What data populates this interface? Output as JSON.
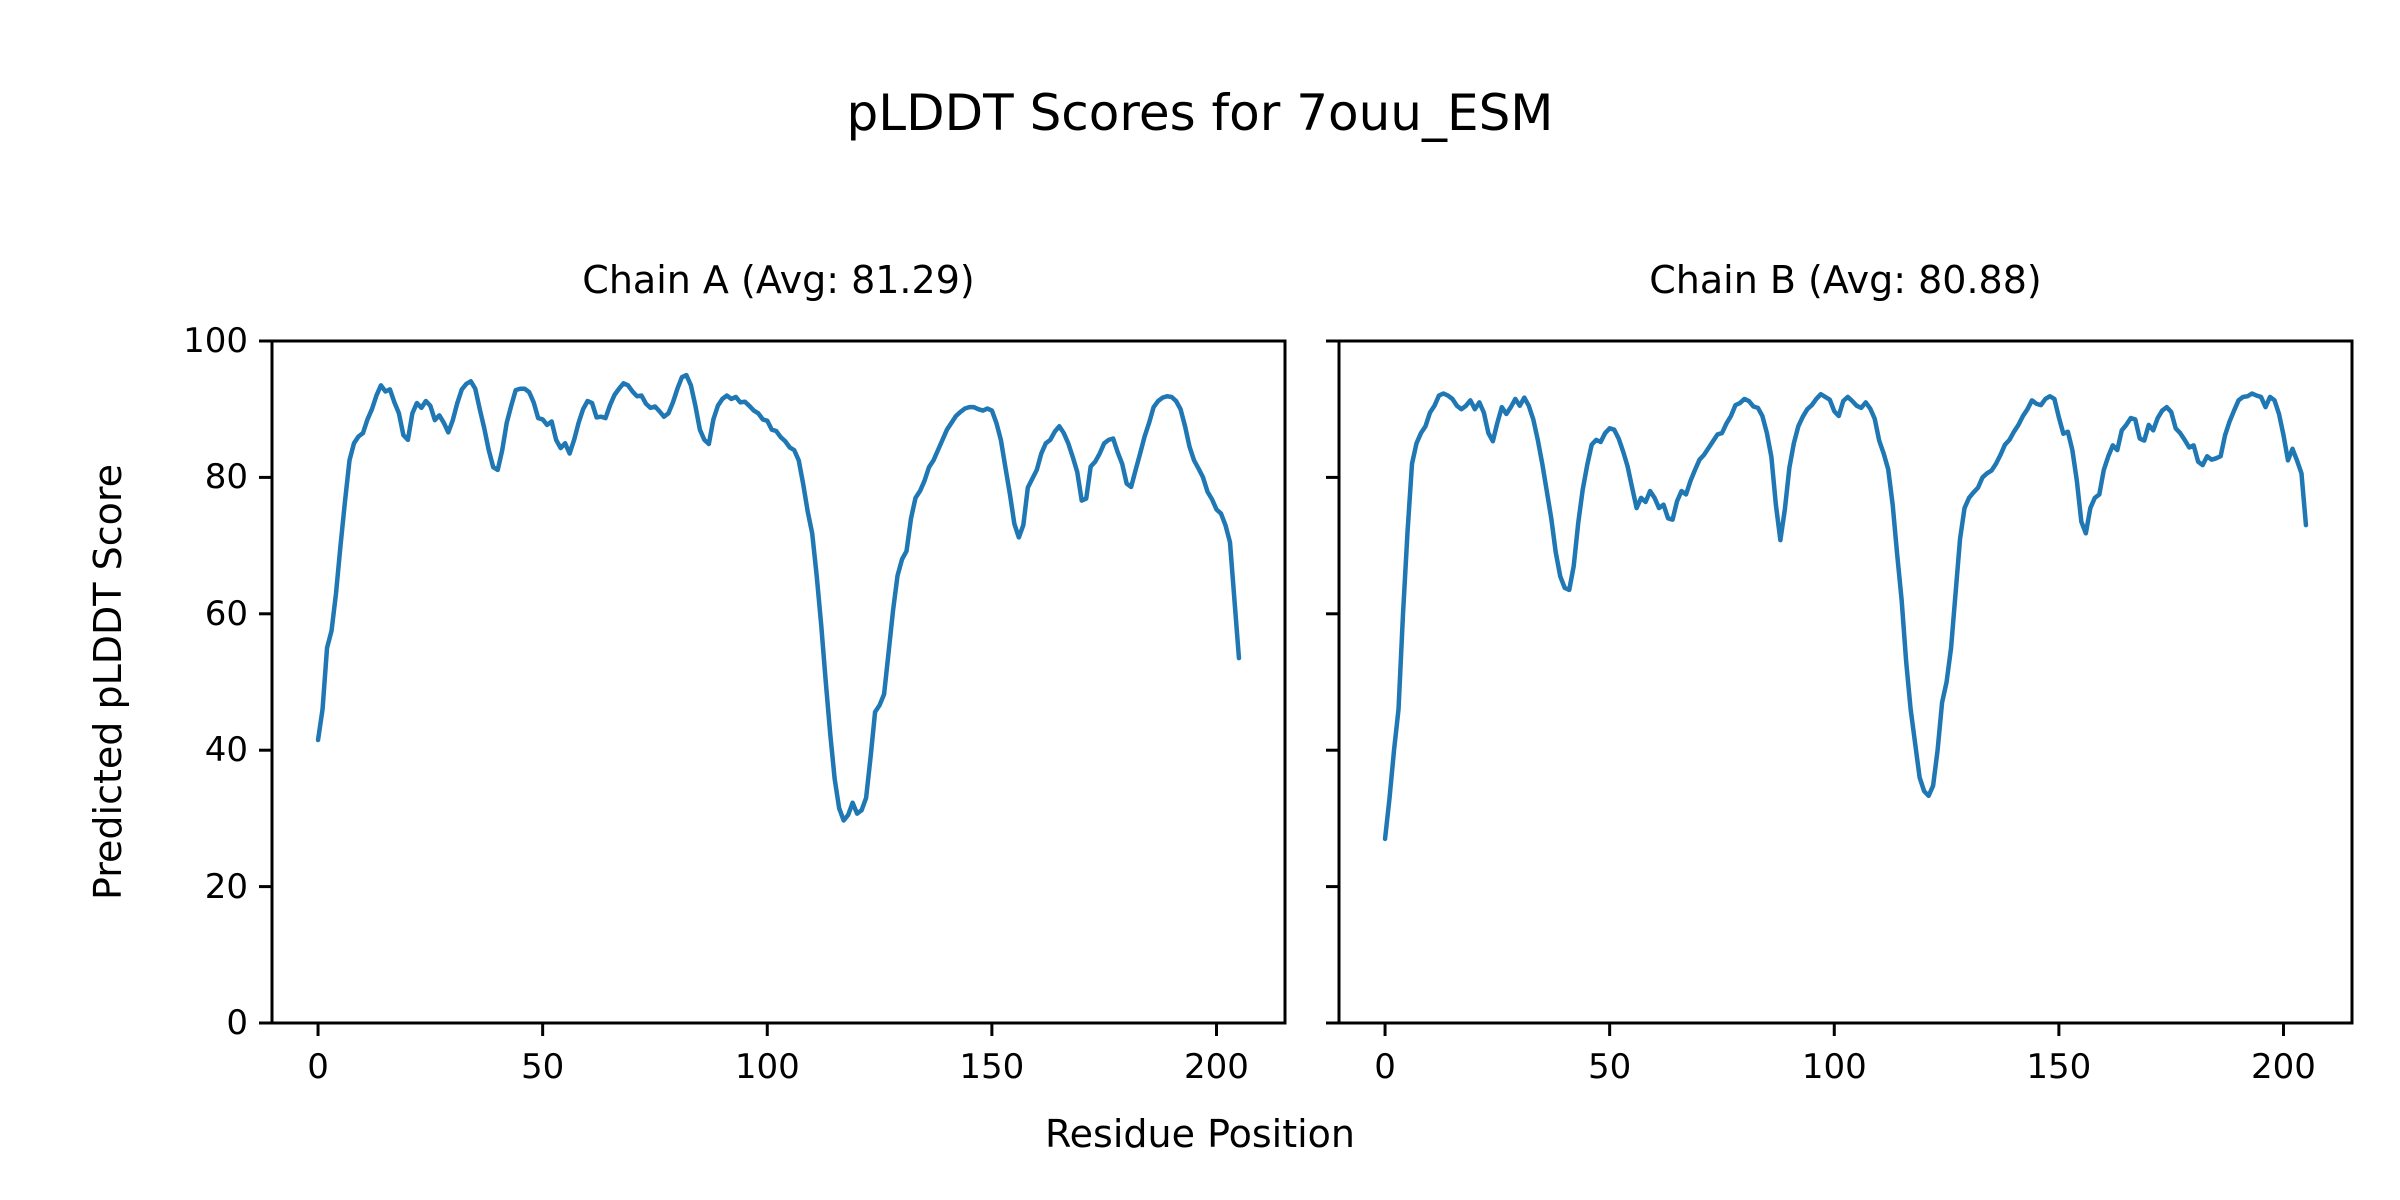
{
  "figure": {
    "suptitle": "pLDDT Scores for 7ouu_ESM",
    "xlabel": "Residue Position",
    "ylabel": "Predicted pLDDT Score",
    "background_color": "#ffffff",
    "text_color": "#000000",
    "spine_color": "#000000"
  },
  "chart_data": [
    {
      "type": "line",
      "name": "Chain A",
      "title": "Chain A (Avg: 81.29)",
      "avg": 81.29,
      "line_color": "#1f77b4",
      "xlabel": "Residue Position",
      "ylabel": "Predicted pLDDT Score",
      "x_ticks": [
        0,
        50,
        100,
        150,
        200
      ],
      "y_ticks": [
        0,
        20,
        40,
        60,
        80,
        100
      ],
      "xlim": [
        -10.25,
        215.25
      ],
      "ylim": [
        0,
        100
      ],
      "grid": false,
      "legend": false,
      "x_start": 0,
      "x_step": 1,
      "values": [
        41.5,
        46,
        55,
        57.5,
        63,
        70,
        76.5,
        82.5,
        85,
        86,
        86.5,
        88.5,
        90,
        92,
        93.5,
        92.6,
        92.9,
        91,
        89.4,
        86.2,
        85.5,
        89.4,
        90.9,
        90.2,
        91.2,
        90.5,
        88.4,
        89.1,
        88,
        86.6,
        88.4,
        90.9,
        92.9,
        93.7,
        94.1,
        93,
        90,
        87.2,
        84,
        81.5,
        81.1,
        84,
        88,
        90.5,
        92.8,
        93,
        93,
        92.5,
        91,
        88.7,
        88.5,
        87.7,
        88.2,
        85.5,
        84.3,
        85,
        83.5,
        85.5,
        88,
        90,
        91.2,
        90.9,
        88.8,
        88.9,
        88.7,
        90.6,
        92.1,
        93,
        93.8,
        93.5,
        92.6,
        91.9,
        92,
        90.8,
        90.2,
        90.4,
        89.7,
        88.9,
        89.4,
        91,
        93,
        94.7,
        95,
        93.5,
        90.5,
        87,
        85.5,
        84.9,
        88.5,
        90.5,
        91.5,
        92,
        91.5,
        91.8,
        91,
        91.1,
        90.5,
        89.8,
        89.4,
        88.5,
        88.3,
        87,
        86.8,
        85.9,
        85.3,
        84.4,
        84,
        82.5,
        79,
        75,
        71.8,
        65.6,
        58.4,
        50.2,
        42.5,
        35.8,
        31.5,
        29.7,
        30.5,
        32.3,
        30.7,
        31.2,
        33,
        39,
        45.6,
        46.6,
        48.2,
        54.3,
        60.5,
        65.6,
        68,
        69.2,
        74,
        77,
        78,
        79.5,
        81.5,
        82.5,
        84,
        85.5,
        87,
        88,
        89,
        89.6,
        90.1,
        90.3,
        90.3,
        90,
        89.8,
        90.1,
        89.8,
        88,
        85.5,
        81.5,
        77.6,
        73.2,
        71.2,
        73,
        78.5,
        79.8,
        81.1,
        83.5,
        85,
        85.5,
        86.7,
        87.5,
        86.5,
        85,
        83,
        80.8,
        76.6,
        76.9,
        81.6,
        82.3,
        83.5,
        85,
        85.5,
        85.7,
        83.7,
        82,
        79.1,
        78.6,
        81.1,
        83.5,
        86,
        88,
        90.3,
        91.2,
        91.7,
        91.9,
        91.8,
        91.2,
        90,
        87.5,
        84.5,
        82.5,
        81.3,
        80,
        77.9,
        76.8,
        75.3,
        74.7,
        73,
        70.5,
        62,
        53.5
      ]
    },
    {
      "type": "line",
      "name": "Chain B",
      "title": "Chain B (Avg: 80.88)",
      "avg": 80.88,
      "line_color": "#1f77b4",
      "xlabel": "Residue Position",
      "ylabel": "Predicted pLDDT Score",
      "x_ticks": [
        0,
        50,
        100,
        150,
        200
      ],
      "y_ticks": [
        0,
        20,
        40,
        60,
        80,
        100
      ],
      "xlim": [
        -10.25,
        215.25
      ],
      "ylim": [
        0,
        100
      ],
      "grid": false,
      "legend": false,
      "x_start": 0,
      "x_step": 1,
      "values": [
        27,
        33,
        40,
        46,
        60,
        72,
        82,
        85,
        86.5,
        87.5,
        89.5,
        90.5,
        92,
        92.3,
        92,
        91.5,
        90.5,
        90,
        90.5,
        91.3,
        90,
        91,
        89.5,
        86.5,
        85.3,
        88,
        90.3,
        89.3,
        90.3,
        91.5,
        90.5,
        91.7,
        90.5,
        88.5,
        85.5,
        82,
        78,
        74,
        69,
        65.5,
        63.8,
        63.5,
        67,
        73.3,
        78.2,
        81.8,
        84.8,
        85.5,
        85.2,
        86.5,
        87.2,
        87,
        85.7,
        83.8,
        81.6,
        78.5,
        75.5,
        77,
        76.4,
        78,
        77,
        75.5,
        76,
        74,
        73.8,
        76.5,
        78,
        77.5,
        79.5,
        81.1,
        82.6,
        83.3,
        84.3,
        85.3,
        86.3,
        86.5,
        87.9,
        89,
        90.6,
        90.9,
        91.5,
        91.2,
        90.4,
        90.2,
        89,
        86.5,
        83,
        76,
        70.8,
        75.3,
        81.4,
        85,
        87.5,
        88.9,
        90,
        90.6,
        91.5,
        92.2,
        91.8,
        91.4,
        89.7,
        89,
        91.2,
        91.8,
        91.2,
        90.5,
        90.2,
        91,
        90.1,
        88.6,
        85.4,
        83.5,
        81.2,
        76,
        68.7,
        62,
        53,
        46,
        41,
        36,
        34,
        33.3,
        34.8,
        40,
        47,
        50,
        55,
        63,
        71,
        75.5,
        77,
        77.8,
        78.5,
        80,
        80.6,
        81,
        82,
        83.3,
        84.8,
        85.5,
        86.7,
        87.7,
        89,
        90,
        91.3,
        90.8,
        90.6,
        91.5,
        91.9,
        91.5,
        88.8,
        86.4,
        86.7,
        84,
        79.5,
        73.5,
        71.8,
        75.5,
        77,
        77.5,
        81.1,
        83.1,
        84.7,
        84,
        86.9,
        87.7,
        88.7,
        88.5,
        85.7,
        85.4,
        87.7,
        86.9,
        88.7,
        89.8,
        90.3,
        89.6,
        87.2,
        86.5,
        85.5,
        84.4,
        84.7,
        82.3,
        81.8,
        83.1,
        82.6,
        82.8,
        83.1,
        86.2,
        88.2,
        89.8,
        91.3,
        91.8,
        91.9,
        92.3,
        92,
        91.8,
        90.3,
        91.8,
        91.3,
        89.3,
        86.2,
        82.5,
        84.2,
        82.5,
        80.6,
        73
      ]
    }
  ]
}
